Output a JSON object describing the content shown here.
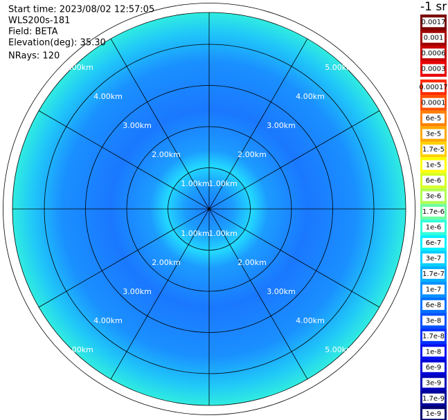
{
  "info": [
    "Start time: 2023/08/02 12:57:05",
    "WLS200s-181",
    "Field: BETA",
    "Elevation(deg): 35.30",
    "NRays: 120"
  ],
  "range_rings": [
    "1.00km",
    "2.00km",
    "3.00km",
    "4.00km",
    "5.00km"
  ],
  "colorbar": {
    "unit": "-1 sr",
    "levels": [
      {
        "label": "0.0017",
        "color": "#7a0000"
      },
      {
        "label": "0.001",
        "color": "#a00000"
      },
      {
        "label": "0.0006",
        "color": "#c80000"
      },
      {
        "label": "0.0003",
        "color": "#e80000"
      },
      {
        "label": "0.00017",
        "color": "#ff2a00"
      },
      {
        "label": "0.0001",
        "color": "#ff5000"
      },
      {
        "label": "6e-5",
        "color": "#ff8000"
      },
      {
        "label": "3e-5",
        "color": "#ffa800"
      },
      {
        "label": "1.7e-5",
        "color": "#ffd000"
      },
      {
        "label": "1e-5",
        "color": "#ffff00"
      },
      {
        "label": "6e-6",
        "color": "#d8ff28"
      },
      {
        "label": "3e-6",
        "color": "#b0ff50"
      },
      {
        "label": "1.7e-6",
        "color": "#70ffa0"
      },
      {
        "label": "1e-6",
        "color": "#30ffd8"
      },
      {
        "label": "6e-7",
        "color": "#00f0ff"
      },
      {
        "label": "3e-7",
        "color": "#00d0ff"
      },
      {
        "label": "1.7e-7",
        "color": "#00b0ff"
      },
      {
        "label": "1e-7",
        "color": "#0090ff"
      },
      {
        "label": "6e-8",
        "color": "#0070ff"
      },
      {
        "label": "3e-8",
        "color": "#0050ff"
      },
      {
        "label": "1.7e-8",
        "color": "#0030ff"
      },
      {
        "label": "1e-8",
        "color": "#0010f0"
      },
      {
        "label": "6e-9",
        "color": "#0000d8"
      },
      {
        "label": "3e-9",
        "color": "#0000b8"
      },
      {
        "label": "1.7e-9",
        "color": "#000098"
      },
      {
        "label": "1e-9",
        "color": "#000070"
      }
    ]
  }
}
